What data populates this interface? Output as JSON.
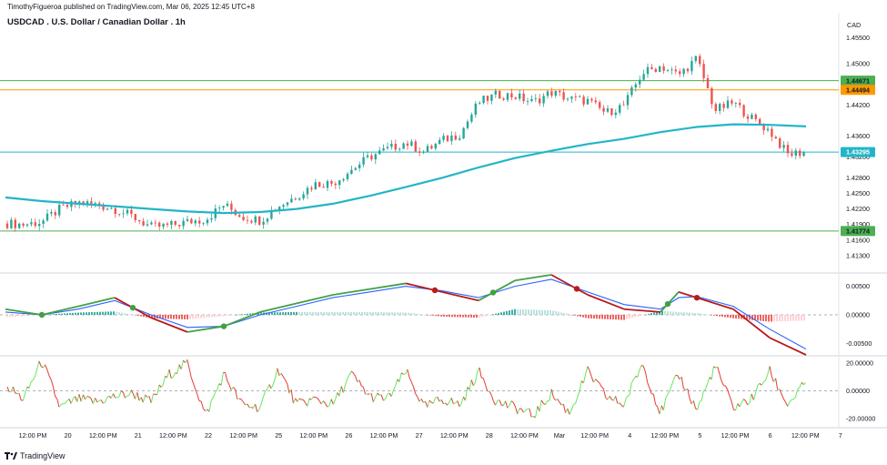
{
  "header": {
    "publisher_line": "TimothyFigueroa published on TradingView.com, Mar 06, 2025 12:45 UTC+8",
    "symbol_title": "USDCAD . U.S. Dollar / Canadian Dollar . 1h"
  },
  "brand": {
    "logo_text": "TradingView",
    "icon": "tradingview-logo-icon"
  },
  "colors": {
    "up_candle": "#26a69a",
    "down_candle": "#ef5350",
    "ma_line": "#22b5c7",
    "green_level": "#4caf50",
    "orange_level": "#ff9800",
    "macd_green": "#43a047",
    "macd_red": "#b71c1c",
    "macd_blue": "#2962ff",
    "osc_green": "#66e65e",
    "osc_red": "#e53935"
  },
  "chart_data": [
    {
      "type": "candlestick",
      "title": "USDCAD . U.S. Dollar / Canadian Dollar . 1h",
      "ylabel": "CAD",
      "yscale": "linear",
      "ylim": [
        1.41,
        1.457
      ],
      "y_ticks": [
        "1.45500",
        "1.45000",
        "1.44600",
        "1.44200",
        "1.43600",
        "1.43200",
        "1.42800",
        "1.42500",
        "1.42200",
        "1.41900",
        "1.41600",
        "1.41300"
      ],
      "x_ticks": [
        "12:00 PM",
        "20",
        "12:00 PM",
        "21",
        "12:00 PM",
        "22",
        "12:00 PM",
        "25",
        "12:00 PM",
        "26",
        "12:00 PM",
        "27",
        "12:00 PM",
        "28",
        "12:00 PM",
        "Mar",
        "12:00 PM",
        "4",
        "12:00 PM",
        "5",
        "12:00 PM",
        "6",
        "12:00 PM",
        "7"
      ],
      "price_levels": [
        {
          "label": "1.44671",
          "value": 1.44671,
          "color": "green"
        },
        {
          "label": "1.44494",
          "value": 1.44494,
          "color": "orange"
        },
        {
          "label": "1.43295",
          "value": 1.43295,
          "color": "teal"
        },
        {
          "label": "1.41774",
          "value": 1.41774,
          "color": "green"
        }
      ],
      "series": [
        {
          "name": "",
          "kind": "close_path",
          "x": [
            0,
            20,
            40,
            60,
            80,
            100,
            120,
            140,
            160,
            180,
            200,
            220,
            240,
            260,
            280,
            300,
            320,
            340,
            360,
            380,
            400,
            420,
            440,
            460,
            480,
            500,
            520,
            540,
            560,
            580,
            600,
            620,
            640,
            660,
            680,
            700,
            720,
            740,
            760,
            780,
            800,
            820,
            840,
            860,
            880
          ],
          "y": [
            1.4192,
            1.419,
            1.4195,
            1.422,
            1.4232,
            1.4228,
            1.422,
            1.4205,
            1.4185,
            1.4188,
            1.4195,
            1.42,
            1.4228,
            1.4205,
            1.4198,
            1.4225,
            1.4245,
            1.4268,
            1.427,
            1.4295,
            1.432,
            1.4335,
            1.4348,
            1.433,
            1.4352,
            1.4365,
            1.4425,
            1.444,
            1.4438,
            1.4425,
            1.4445,
            1.4432,
            1.4428,
            1.4405,
            1.442,
            1.4482,
            1.4495,
            1.4478,
            1.451,
            1.441,
            1.4425,
            1.4395,
            1.437,
            1.4325,
            1.433
          ]
        },
        {
          "name": "",
          "kind": "moving_average",
          "x": [
            0,
            40,
            80,
            120,
            160,
            200,
            240,
            280,
            320,
            360,
            400,
            440,
            480,
            520,
            560,
            600,
            640,
            680,
            720,
            760,
            800,
            840,
            880
          ],
          "y": [
            1.4242,
            1.4235,
            1.423,
            1.4225,
            1.422,
            1.4215,
            1.4212,
            1.4214,
            1.422,
            1.423,
            1.4245,
            1.4262,
            1.428,
            1.43,
            1.4318,
            1.4332,
            1.4345,
            1.4355,
            1.4368,
            1.4378,
            1.4383,
            1.4382,
            1.4379
          ]
        }
      ]
    },
    {
      "type": "line",
      "title": "",
      "y_ticks": [
        "0.00500",
        "0.00000",
        "-0.00500"
      ],
      "ylim": [
        -0.007,
        0.007
      ],
      "series": [
        {
          "name": "",
          "color": "green/red",
          "x": [
            0,
            40,
            80,
            120,
            160,
            200,
            240,
            280,
            320,
            360,
            400,
            440,
            480,
            520,
            560,
            600,
            640,
            680,
            720,
            740,
            760,
            800,
            840,
            880
          ],
          "y": [
            0.001,
            0.0,
            0.0015,
            0.003,
            -0.0005,
            -0.003,
            -0.002,
            0.0005,
            0.002,
            0.0035,
            0.0045,
            0.0055,
            0.004,
            0.0025,
            0.006,
            0.007,
            0.0035,
            0.001,
            0.0005,
            0.004,
            0.003,
            0.001,
            -0.004,
            -0.007
          ]
        },
        {
          "name": "",
          "color": "blue",
          "x": [
            0,
            40,
            80,
            120,
            160,
            200,
            240,
            280,
            320,
            360,
            400,
            440,
            480,
            520,
            560,
            600,
            640,
            680,
            720,
            740,
            760,
            800,
            840,
            880
          ],
          "y": [
            0.0005,
            0.0,
            0.001,
            0.0025,
            0.0,
            -0.0022,
            -0.002,
            0.0,
            0.0015,
            0.003,
            0.004,
            0.005,
            0.0042,
            0.003,
            0.005,
            0.0062,
            0.004,
            0.0018,
            0.001,
            0.003,
            0.0032,
            0.0015,
            -0.0025,
            -0.006
          ]
        }
      ],
      "histogram": {
        "x": [
          0,
          40,
          80,
          120,
          160,
          200,
          240,
          280,
          320,
          360,
          400,
          440,
          480,
          520,
          560,
          600,
          640,
          680,
          720,
          760,
          800,
          840,
          880
        ],
        "values": [
          -0.0004,
          0.0,
          0.0004,
          0.0006,
          -0.0006,
          -0.0008,
          -0.0002,
          0.0004,
          0.0005,
          0.0005,
          0.0005,
          0.0004,
          -0.0003,
          -0.0005,
          0.001,
          0.0008,
          -0.0006,
          -0.0009,
          0.0007,
          0.0003,
          -0.0006,
          -0.0012,
          -0.001
        ]
      }
    },
    {
      "type": "line",
      "title": "",
      "y_ticks": [
        "20.00000",
        "0.00000",
        "-20.00000"
      ],
      "ylim": [
        -24,
        24
      ],
      "series": [
        {
          "name": "",
          "color": "green/red",
          "x": [
            0,
            20,
            40,
            60,
            80,
            100,
            120,
            140,
            160,
            180,
            200,
            220,
            240,
            260,
            280,
            300,
            320,
            340,
            360,
            380,
            400,
            420,
            440,
            460,
            480,
            500,
            520,
            540,
            560,
            580,
            600,
            620,
            640,
            660,
            680,
            700,
            720,
            740,
            760,
            780,
            800,
            820,
            840,
            860,
            880
          ],
          "y": [
            4,
            -6,
            22,
            -12,
            -6,
            -8,
            -4,
            -2,
            -8,
            12,
            20,
            -18,
            12,
            -10,
            -12,
            16,
            -10,
            -6,
            -10,
            12,
            -4,
            -6,
            14,
            -12,
            -6,
            -10,
            14,
            -8,
            -12,
            -18,
            -2,
            -16,
            14,
            -4,
            -10,
            20,
            -16,
            12,
            -14,
            18,
            -12,
            -6,
            14,
            -10,
            6
          ]
        }
      ]
    }
  ]
}
